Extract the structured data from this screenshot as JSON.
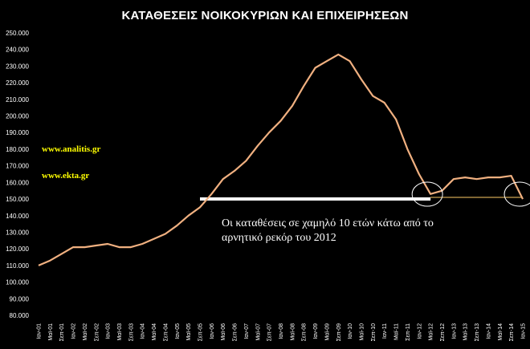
{
  "chart_data": {
    "type": "line",
    "title": "ΚΑΤΑΘΕΣΕΙΣ ΝΟΙΚΟΚΥΡΙΩΝ ΚΑΙ ΕΠΙΧΕΙΡΗΣΕΩΝ",
    "ylim": [
      80000,
      250000
    ],
    "y_ticks": [
      "80.000",
      "90.000",
      "100.000",
      "110.000",
      "120.000",
      "130.000",
      "140.000",
      "150.000",
      "160.000",
      "170.000",
      "180.000",
      "190.000",
      "200.000",
      "210.000",
      "220.000",
      "230.000",
      "240.000",
      "250.000"
    ],
    "x_ticks": [
      "Ιαν-01",
      "Μαϊ-01",
      "Σεπ-01",
      "Ιαν-02",
      "Μαϊ-02",
      "Σεπ-02",
      "Ιαν-03",
      "Μαϊ-03",
      "Σεπ-03",
      "Ιαν-04",
      "Μαϊ-04",
      "Σεπ-04",
      "Ιαν-05",
      "Μαϊ-05",
      "Σεπ-05",
      "Ιαν-06",
      "Μαϊ-06",
      "Σεπ-06",
      "Ιαν-07",
      "Μαϊ-07",
      "Σεπ-07",
      "Ιαν-08",
      "Μαϊ-08",
      "Σεπ-08",
      "Ιαν-09",
      "Μαϊ-09",
      "Σεπ-09",
      "Ιαν-10",
      "Μαϊ-10",
      "Σεπ-10",
      "Ιαν-11",
      "Μαϊ-11",
      "Σεπ-11",
      "Ιαν-12",
      "Μαϊ-12",
      "Σεπ-12",
      "Ιαν-13",
      "Μαϊ-13",
      "Σεπ-13",
      "Ιαν-14",
      "Μαϊ-14",
      "Σεπ-14",
      "Ιαν-15"
    ],
    "grid": false,
    "series": [
      {
        "color": "#f0b080",
        "x": [
          "Ιαν-01",
          "Μαϊ-01",
          "Σεπ-01",
          "Ιαν-02",
          "Μαϊ-02",
          "Σεπ-02",
          "Ιαν-03",
          "Μαϊ-03",
          "Σεπ-03",
          "Ιαν-04",
          "Μαϊ-04",
          "Σεπ-04",
          "Ιαν-05",
          "Μαϊ-05",
          "Σεπ-05",
          "Ιαν-06",
          "Μαϊ-06",
          "Σεπ-06",
          "Ιαν-07",
          "Μαϊ-07",
          "Σεπ-07",
          "Ιαν-08",
          "Μαϊ-08",
          "Σεπ-08",
          "Ιαν-09",
          "Μαϊ-09",
          "Σεπ-09",
          "Ιαν-10",
          "Μαϊ-10",
          "Σεπ-10",
          "Ιαν-11",
          "Μαϊ-11",
          "Σεπ-11",
          "Ιαν-12",
          "Μαϊ-12",
          "Σεπ-12",
          "Ιαν-13",
          "Μαϊ-13",
          "Σεπ-13",
          "Ιαν-14",
          "Μαϊ-14",
          "Σεπ-14",
          "Ιαν-15"
        ],
        "values": [
          110000,
          113000,
          117000,
          121000,
          121000,
          122000,
          123000,
          121000,
          121000,
          123000,
          126000,
          129000,
          134000,
          140000,
          145000,
          153000,
          162000,
          167000,
          173000,
          182000,
          190000,
          197000,
          206000,
          218000,
          229000,
          233000,
          237000,
          233000,
          222000,
          212000,
          208000,
          198000,
          180000,
          165000,
          153000,
          155000,
          162000,
          163000,
          162000,
          163000,
          163000,
          164000,
          150000
        ]
      }
    ],
    "reference_line": {
      "value": 150000,
      "from": "Σεπ-05",
      "to": "Ιαν-15"
    },
    "highlights": [
      "Μαϊ-12",
      "Ιαν-15"
    ]
  },
  "watermarks": [
    "www.analitis.gr",
    "www.ekta.gr"
  ],
  "annotation": [
    "Οι καταθέσεις σε χαμηλό 10 ετών κάτω από το",
    "αρνητικό ρεκόρ του 2012"
  ]
}
